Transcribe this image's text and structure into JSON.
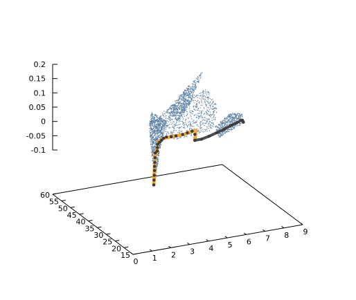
{
  "chart_data": {
    "type": "scatter",
    "projection": "3d",
    "title": "",
    "xlabel": "",
    "ylabel": "",
    "zlabel": "",
    "xlim": [
      0,
      9
    ],
    "ylim": [
      15,
      60
    ],
    "zlim": [
      -0.1,
      0.2
    ],
    "x_ticks": [
      "0",
      "1",
      "2",
      "3",
      "4",
      "5",
      "6",
      "7",
      "8",
      "9"
    ],
    "y_ticks": [
      "15",
      "20",
      "25",
      "30",
      "35",
      "40",
      "45",
      "50",
      "55",
      "60"
    ],
    "z_ticks": [
      "0.2",
      "0.15",
      "0.1",
      "0.05",
      "0",
      "-0.05",
      "-0.1"
    ],
    "grid": false,
    "legend": "none",
    "colors": {
      "cloud": "#5b7fa0",
      "highlight_path": "#f0a030",
      "path_points": "#3a3a3a"
    },
    "series": [
      {
        "kind": "point-cloud",
        "shapes": [
          {
            "part": "left-wing",
            "polygon": [
              [
                3.8,
                45,
                0.06
              ],
              [
                3.2,
                40,
                0.05
              ],
              [
                2.6,
                33,
                0.03
              ],
              [
                1.4,
                18,
                -0.02
              ],
              [
                1.2,
                16,
                -0.03
              ],
              [
                1.8,
                21,
                -0.02
              ],
              [
                2.9,
                31,
                0.0
              ],
              [
                4.6,
                45,
                0.02
              ]
            ],
            "density": 900
          },
          {
            "part": "fuselage",
            "polygon": [
              [
                3.2,
                40,
                0.05
              ],
              [
                4.0,
                42,
                0.07
              ],
              [
                7.2,
                50,
                0.08
              ],
              [
                7.6,
                48,
                0.02
              ],
              [
                6.6,
                40,
                -0.01
              ],
              [
                4.2,
                36,
                0.0
              ]
            ],
            "density": 700
          },
          {
            "part": "right-wing",
            "polygon": [
              [
                4.5,
                44,
                0.06
              ],
              [
                6.4,
                52,
                0.09
              ],
              [
                7.4,
                54,
                0.12
              ],
              [
                7.0,
                52,
                0.1
              ],
              [
                6.0,
                47,
                0.05
              ],
              [
                4.9,
                42,
                0.03
              ]
            ],
            "density": 500
          },
          {
            "part": "tail",
            "polygon": [
              [
                6.7,
                40,
                0.0
              ],
              [
                7.8,
                43,
                0.02
              ],
              [
                8.6,
                45,
                0.0
              ],
              [
                8.6,
                44,
                -0.03
              ],
              [
                7.6,
                41,
                -0.03
              ],
              [
                6.7,
                38,
                -0.03
              ]
            ],
            "density": 450
          }
        ]
      },
      {
        "kind": "highlight-path",
        "points": [
          [
            1.2,
            16,
            -0.03
          ],
          [
            1.5,
            19,
            -0.02
          ],
          [
            1.9,
            23,
            -0.01
          ],
          [
            2.4,
            28,
            0.0
          ],
          [
            2.9,
            32,
            0.0
          ],
          [
            3.3,
            36,
            0.0
          ],
          [
            3.8,
            38,
            0.0
          ],
          [
            4.4,
            39,
            -0.005
          ],
          [
            5.1,
            40,
            -0.01
          ],
          [
            5.6,
            41,
            -0.01
          ],
          [
            5.8,
            41,
            -0.01
          ],
          [
            5.6,
            39.5,
            -0.035
          ]
        ]
      },
      {
        "kind": "dark-path",
        "points": [
          [
            1.2,
            16,
            -0.03
          ],
          [
            1.4,
            18,
            -0.025
          ],
          [
            1.6,
            20,
            -0.02
          ],
          [
            1.8,
            22,
            -0.015
          ],
          [
            2.0,
            24,
            -0.012
          ],
          [
            2.2,
            26,
            -0.01
          ],
          [
            2.4,
            28,
            -0.005
          ],
          [
            2.6,
            30,
            0.0
          ],
          [
            2.8,
            31,
            0.0
          ],
          [
            3.0,
            33,
            0.0
          ],
          [
            3.2,
            35,
            0.0
          ],
          [
            3.4,
            36,
            0.0
          ],
          [
            3.6,
            37,
            0.0
          ],
          [
            3.8,
            38,
            0.0
          ],
          [
            4.0,
            38.5,
            0.0
          ],
          [
            4.3,
            39,
            -0.005
          ],
          [
            4.6,
            39.5,
            -0.008
          ],
          [
            5.0,
            40,
            -0.01
          ],
          [
            5.3,
            40.5,
            -0.01
          ],
          [
            5.6,
            41,
            -0.01
          ],
          [
            5.7,
            40.5,
            -0.02
          ],
          [
            5.6,
            39.5,
            -0.035
          ],
          [
            6.0,
            40,
            -0.038
          ],
          [
            6.5,
            41,
            -0.038
          ],
          [
            7.0,
            42,
            -0.036
          ],
          [
            7.5,
            43,
            -0.034
          ],
          [
            8.0,
            44,
            -0.03
          ],
          [
            8.3,
            44.5,
            -0.028
          ],
          [
            8.6,
            45,
            -0.025
          ],
          [
            8.55,
            44,
            -0.02
          ],
          [
            8.65,
            44.5,
            -0.03
          ]
        ]
      }
    ]
  }
}
